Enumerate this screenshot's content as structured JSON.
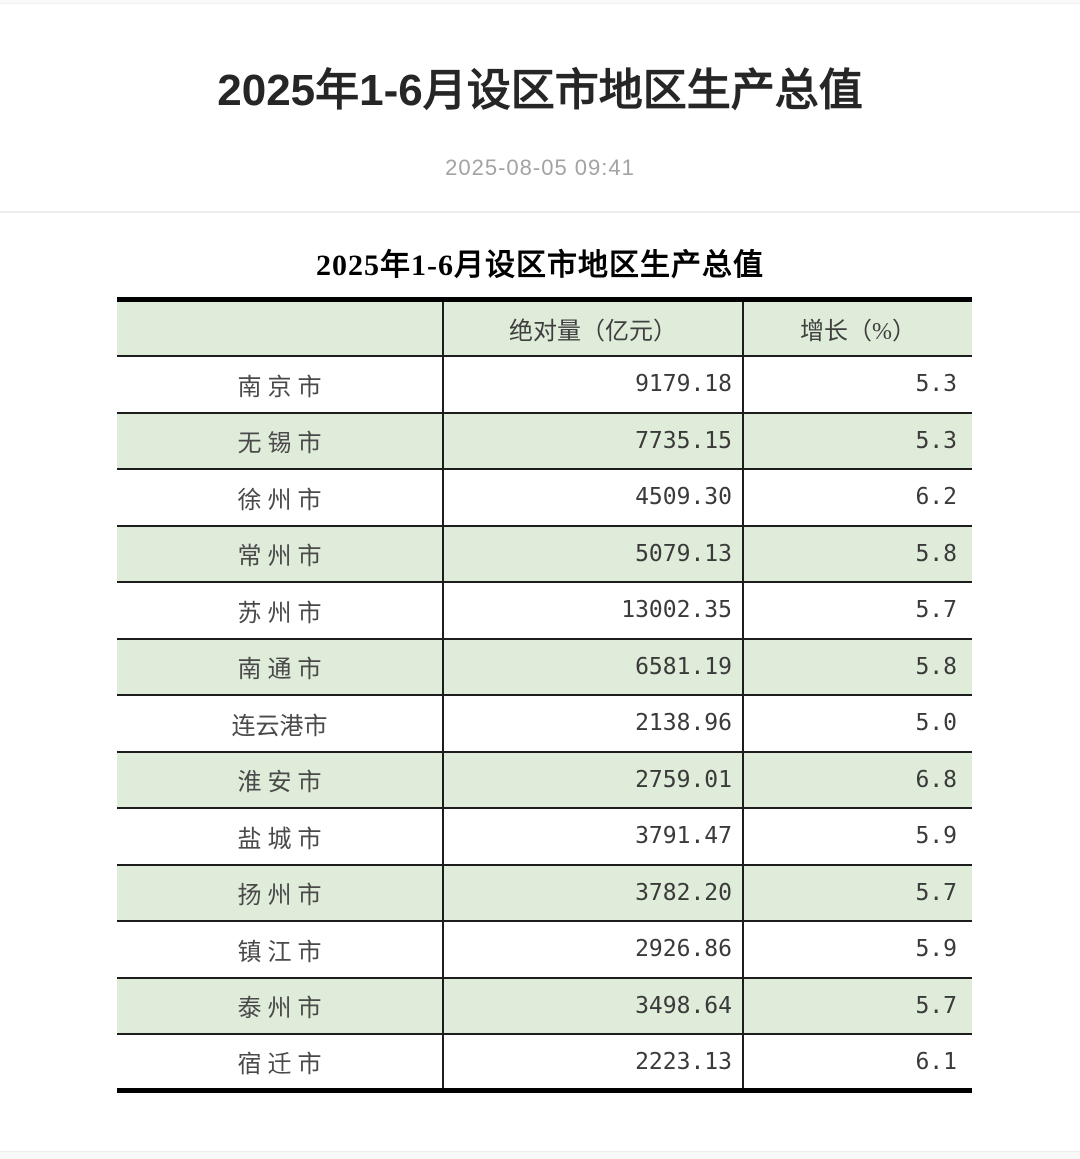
{
  "page": {
    "title": "2025年1-6月设区市地区生产总值",
    "timestamp": "2025-08-05 09:41"
  },
  "table": {
    "title": "2025年1-6月设区市地区生产总值",
    "columns": {
      "city": "",
      "absolute": "绝对量（亿元）",
      "growth": "增长（%）"
    },
    "rows": [
      {
        "city": "南 京 市",
        "value": "9179.18",
        "growth": "5.3"
      },
      {
        "city": "无 锡 市",
        "value": "7735.15",
        "growth": "5.3"
      },
      {
        "city": "徐 州 市",
        "value": "4509.30",
        "growth": "6.2"
      },
      {
        "city": "常 州 市",
        "value": "5079.13",
        "growth": "5.8"
      },
      {
        "city": "苏 州 市",
        "value": "13002.35",
        "growth": "5.7"
      },
      {
        "city": "南 通 市",
        "value": "6581.19",
        "growth": "5.8"
      },
      {
        "city": "连云港市",
        "value": "2138.96",
        "growth": "5.0"
      },
      {
        "city": "淮 安 市",
        "value": "2759.01",
        "growth": "6.8"
      },
      {
        "city": "盐 城 市",
        "value": "3791.47",
        "growth": "5.9"
      },
      {
        "city": "扬 州 市",
        "value": "3782.20",
        "growth": "5.7"
      },
      {
        "city": "镇 江 市",
        "value": "2926.86",
        "growth": "5.9"
      },
      {
        "city": "泰 州 市",
        "value": "3498.64",
        "growth": "5.7"
      },
      {
        "city": "宿 迁 市",
        "value": "2223.13",
        "growth": "6.1"
      }
    ]
  },
  "colors": {
    "row_green": "#dfecda",
    "border_dark": "#1d1d1d",
    "heavy_border": "#000000",
    "timestamp_gray": "#a3a3a3"
  }
}
